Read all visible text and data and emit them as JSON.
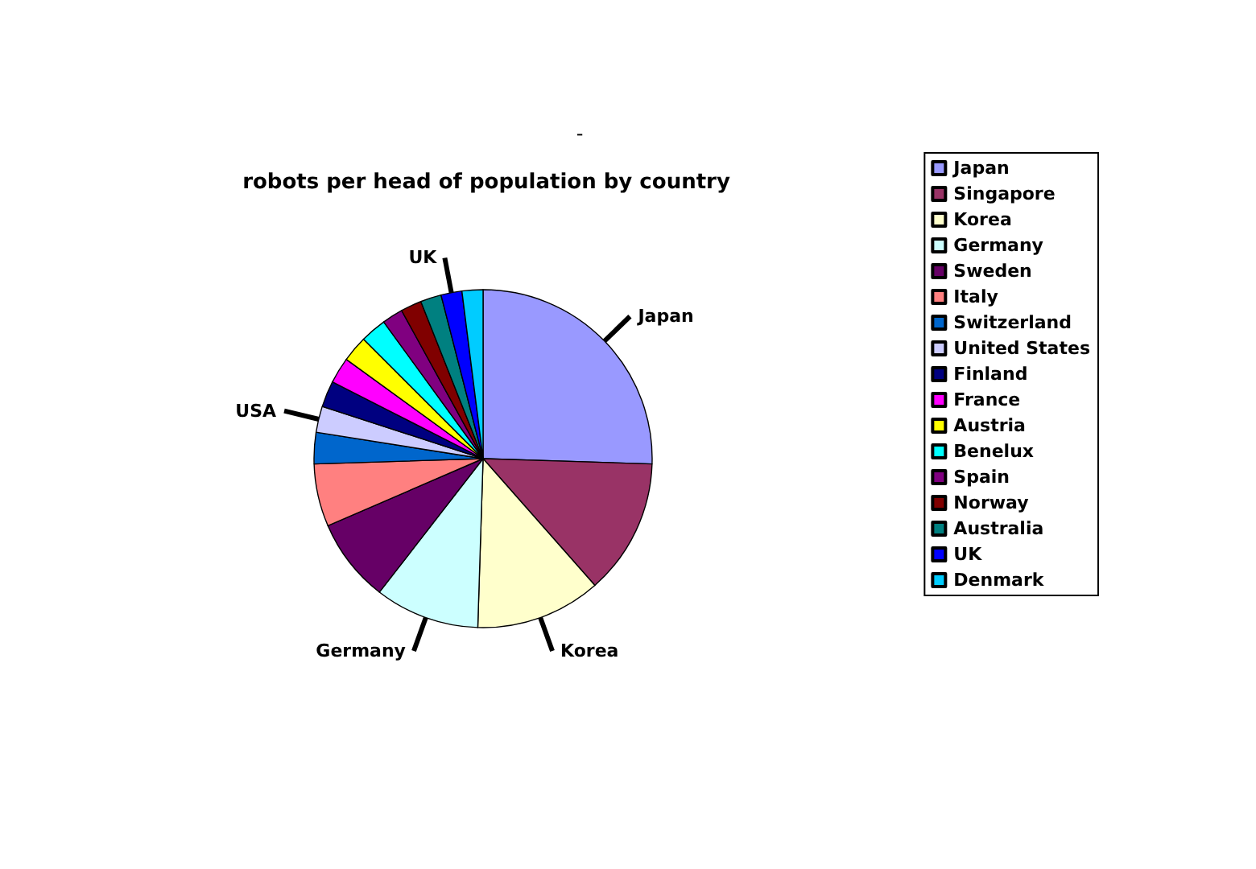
{
  "chart_data": {
    "type": "pie",
    "title": "robots per head of population by country",
    "categories": [
      "Japan",
      "Singapore",
      "Korea",
      "Germany",
      "Sweden",
      "Italy",
      "Switzerland",
      "United States",
      "Finland",
      "France",
      "Austria",
      "Benelux",
      "Spain",
      "Norway",
      "Australia",
      "UK",
      "Denmark"
    ],
    "values": [
      25.5,
      13,
      12,
      10,
      8,
      6,
      3,
      2.5,
      2.5,
      2.5,
      2.5,
      2.5,
      2,
      2,
      2,
      2,
      2
    ],
    "colors": [
      "#9999ff",
      "#993366",
      "#ffffcc",
      "#ccffff",
      "#660066",
      "#ff8080",
      "#0066cc",
      "#ccccff",
      "#000080",
      "#ff00ff",
      "#ffff00",
      "#00ffff",
      "#800080",
      "#800000",
      "#008080",
      "#0000ff",
      "#00ccff"
    ],
    "annotations": [
      "-",
      {
        "text": "Japan",
        "x": "Japan"
      },
      {
        "text": "Korea",
        "x": "Korea"
      },
      {
        "text": "Germany",
        "x": "Germany"
      },
      {
        "text": "USA",
        "x": "United States"
      },
      {
        "text": "UK",
        "x": "UK"
      }
    ],
    "legend": "right"
  }
}
